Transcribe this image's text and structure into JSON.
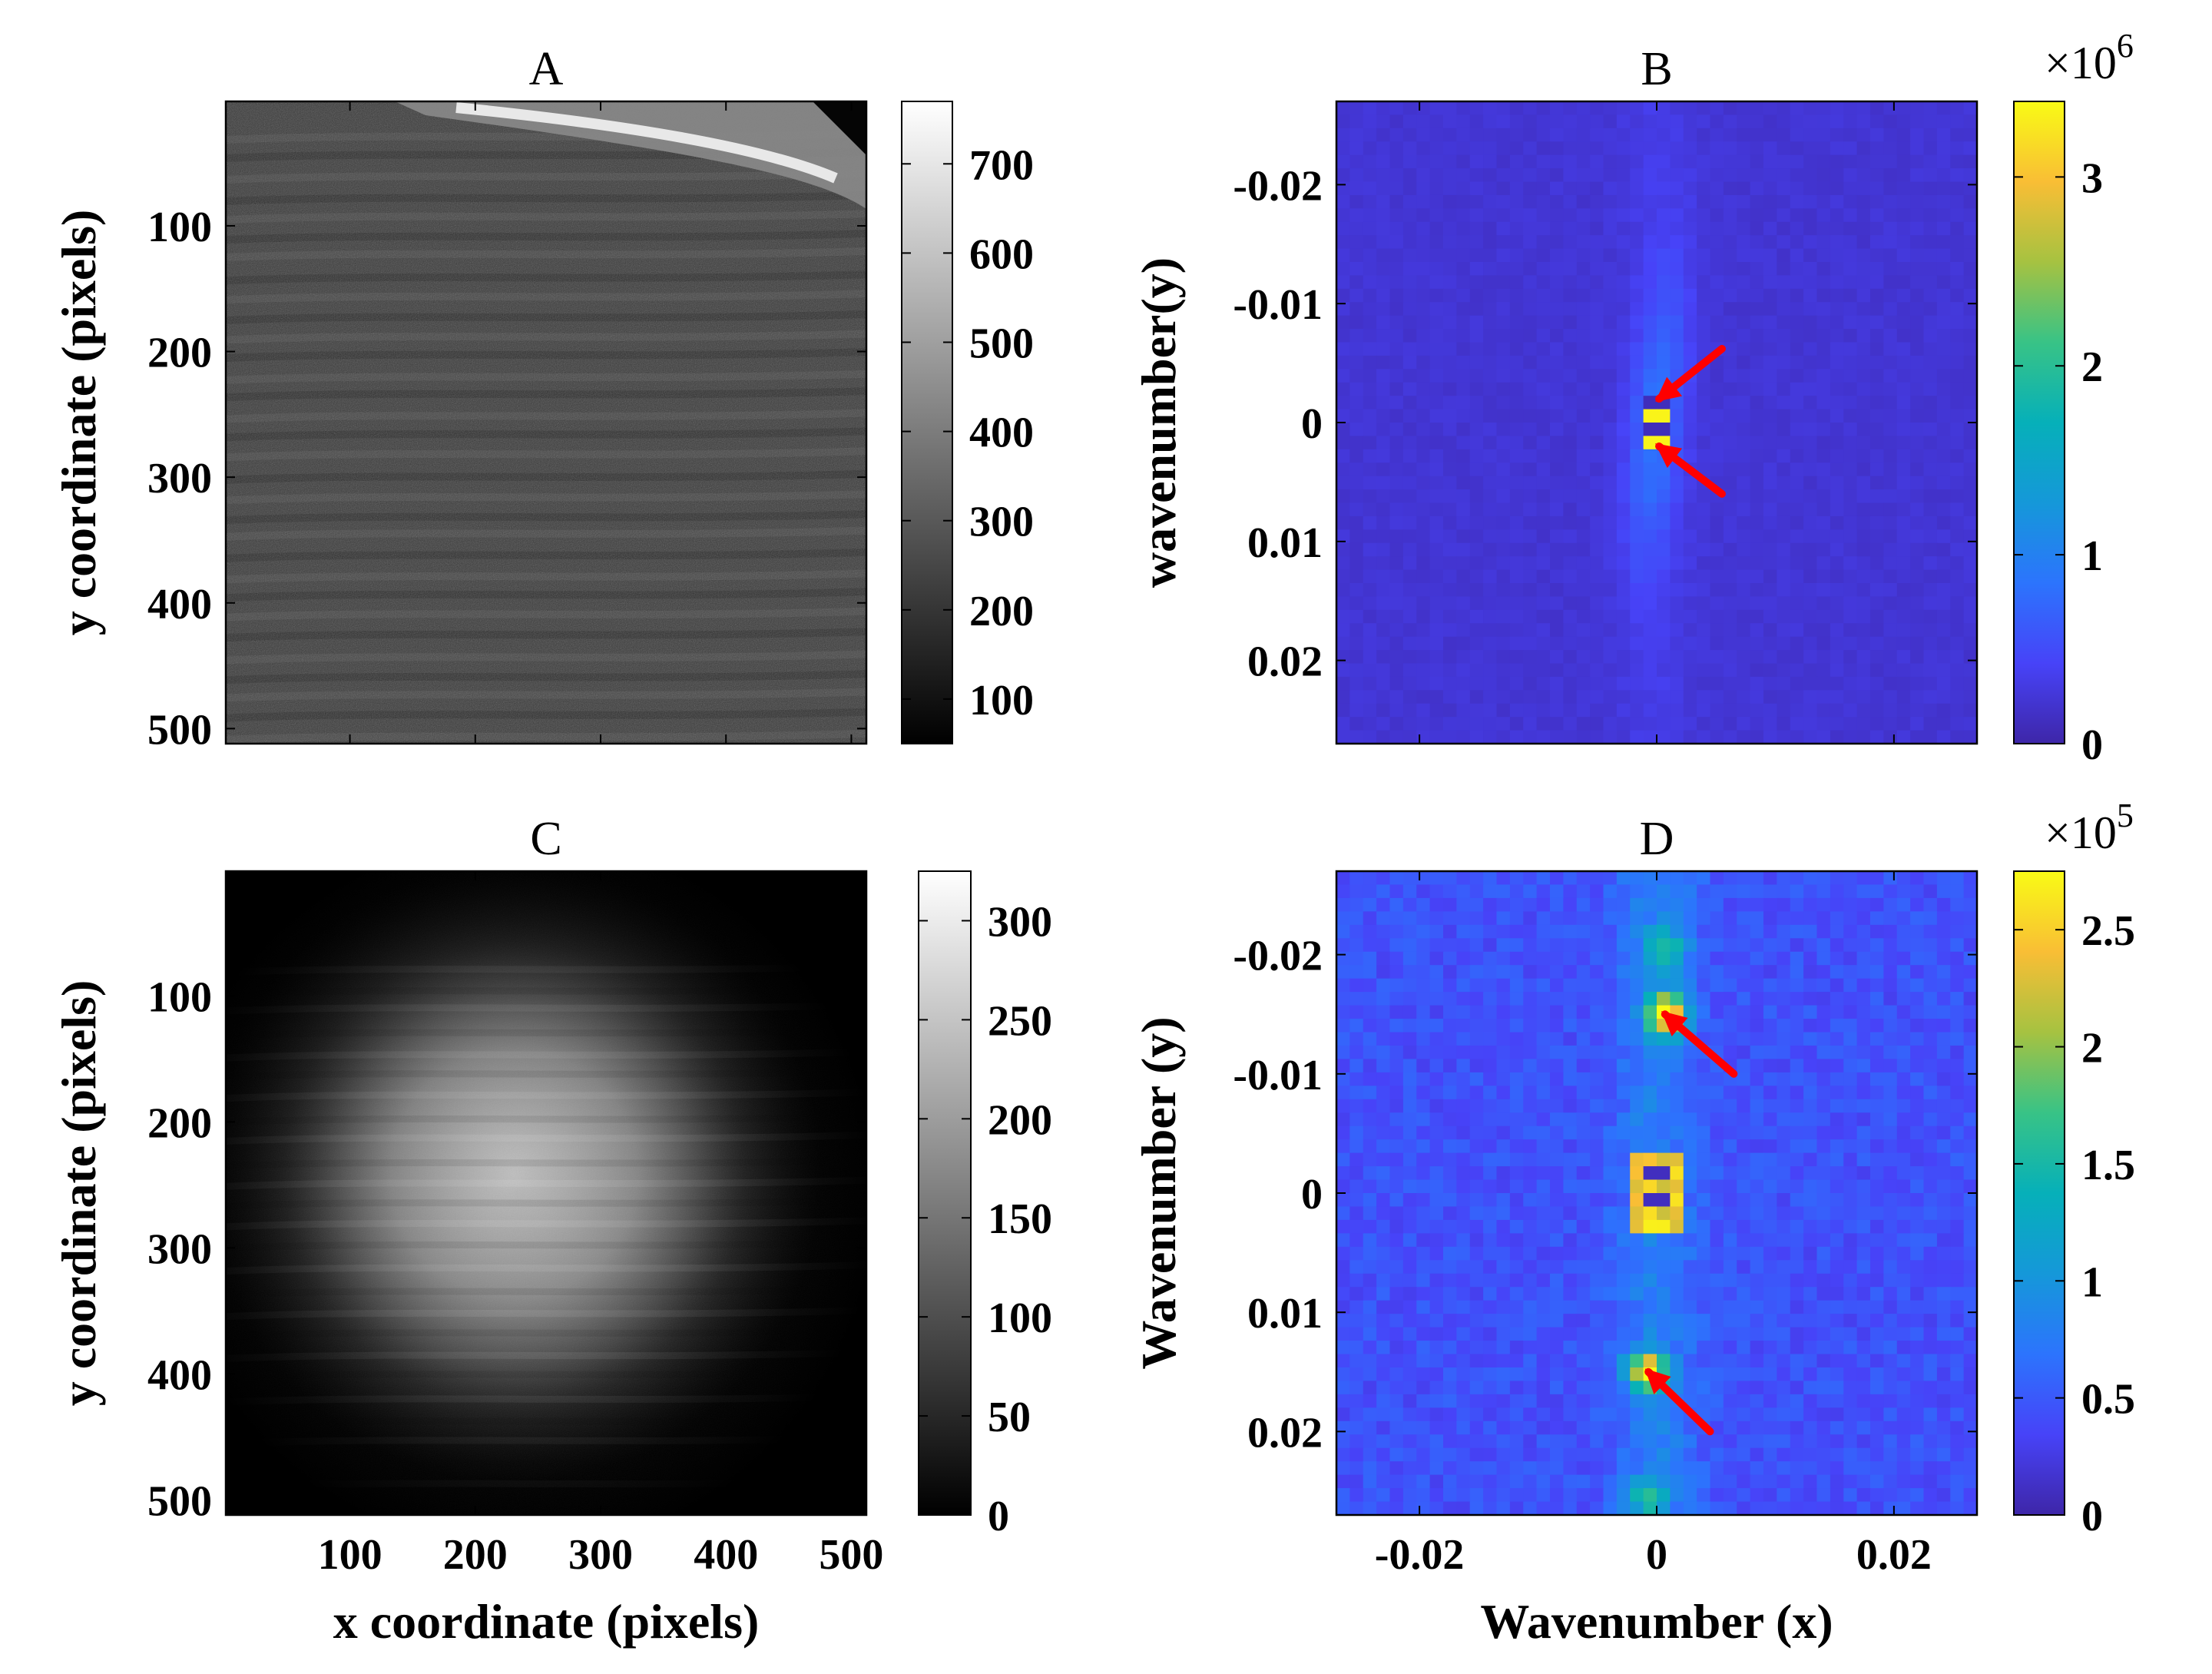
{
  "chart_data": [
    {
      "panel": "A",
      "type": "heatmap",
      "title": "A",
      "xlabel": "",
      "ylabel": "y coordinate (pixels)",
      "xlim": [
        1,
        512
      ],
      "ylim": [
        1,
        512
      ],
      "y_reversed": true,
      "xtick_values": [
        100,
        200,
        300,
        400,
        500
      ],
      "xtick_labels": [],
      "ytick_values": [
        100,
        200,
        300,
        400,
        500
      ],
      "ytick_labels": [
        "100",
        "200",
        "300",
        "400",
        "500"
      ],
      "colormap": "gray",
      "clim": [
        50,
        770
      ],
      "colorbar_tick_values": [
        100,
        200,
        300,
        400,
        500,
        600,
        700
      ],
      "colorbar_tick_labels": [
        "100",
        "200",
        "300",
        "400",
        "500",
        "600",
        "700"
      ],
      "colorbar_multiplier": ""
    },
    {
      "panel": "B",
      "type": "heatmap",
      "title": "B",
      "xlabel": "",
      "ylabel": "wavenumber(y)",
      "xlim": [
        -0.027,
        0.027
      ],
      "ylim": [
        -0.027,
        0.027
      ],
      "y_reversed": true,
      "xtick_values": [
        -0.02,
        0,
        0.02
      ],
      "xtick_labels": [],
      "ytick_values": [
        -0.02,
        -0.01,
        0,
        0.01,
        0.02
      ],
      "ytick_labels": [
        "-0.02",
        "-0.01",
        "0",
        "0.01",
        "0.02"
      ],
      "colormap": "parula",
      "clim": [
        0,
        3.4
      ],
      "colorbar_tick_values": [
        0,
        1,
        2,
        3
      ],
      "colorbar_tick_labels": [
        "0",
        "1",
        "2",
        "3"
      ],
      "colorbar_multiplier": "×10",
      "colorbar_exponent": "6",
      "annotations": [
        {
          "type": "arrow",
          "from": [
            0.0055,
            -0.0062
          ],
          "to": [
            0.0002,
            -0.002
          ],
          "color": "#ff0000"
        },
        {
          "type": "arrow",
          "from": [
            0.0055,
            0.006
          ],
          "to": [
            0.0002,
            0.002
          ],
          "color": "#ff0000"
        }
      ]
    },
    {
      "panel": "C",
      "type": "heatmap",
      "title": "C",
      "xlabel": "x coordinate (pixels)",
      "ylabel": "y coordinate (pixels)",
      "xlim": [
        1,
        512
      ],
      "ylim": [
        1,
        512
      ],
      "y_reversed": true,
      "xtick_values": [
        100,
        200,
        300,
        400,
        500
      ],
      "xtick_labels": [
        "100",
        "200",
        "300",
        "400",
        "500"
      ],
      "ytick_values": [
        100,
        200,
        300,
        400,
        500
      ],
      "ytick_labels": [
        "100",
        "200",
        "300",
        "400",
        "500"
      ],
      "colormap": "gray",
      "clim": [
        0,
        325
      ],
      "colorbar_tick_values": [
        0,
        50,
        100,
        150,
        200,
        250,
        300
      ],
      "colorbar_tick_labels": [
        "0",
        "50",
        "100",
        "150",
        "200",
        "250",
        "300"
      ],
      "colorbar_multiplier": ""
    },
    {
      "panel": "D",
      "type": "heatmap",
      "title": "D",
      "xlabel": "Wavenumber (x)",
      "ylabel": "Wavenumber (y)",
      "xlim": [
        -0.027,
        0.027
      ],
      "ylim": [
        -0.027,
        0.027
      ],
      "y_reversed": true,
      "xtick_values": [
        -0.02,
        0,
        0.02
      ],
      "xtick_labels": [
        "-0.02",
        "0",
        "0.02"
      ],
      "ytick_values": [
        -0.02,
        -0.01,
        0,
        0.01,
        0.02
      ],
      "ytick_labels": [
        "-0.02",
        "-0.01",
        "0",
        "0.01",
        "0.02"
      ],
      "colormap": "parula",
      "clim": [
        0,
        2.75
      ],
      "colorbar_tick_values": [
        0,
        0.5,
        1,
        1.5,
        2,
        2.5
      ],
      "colorbar_tick_labels": [
        "0",
        "0.5",
        "1",
        "1.5",
        "2",
        "2.5"
      ],
      "colorbar_multiplier": "×10",
      "colorbar_exponent": "5",
      "annotations": [
        {
          "type": "arrow",
          "from": [
            0.0065,
            -0.01
          ],
          "to": [
            0.0007,
            -0.015
          ],
          "color": "#ff0000"
        },
        {
          "type": "arrow",
          "from": [
            0.0045,
            0.02
          ],
          "to": [
            -0.0007,
            0.015
          ],
          "color": "#ff0000"
        }
      ]
    }
  ]
}
